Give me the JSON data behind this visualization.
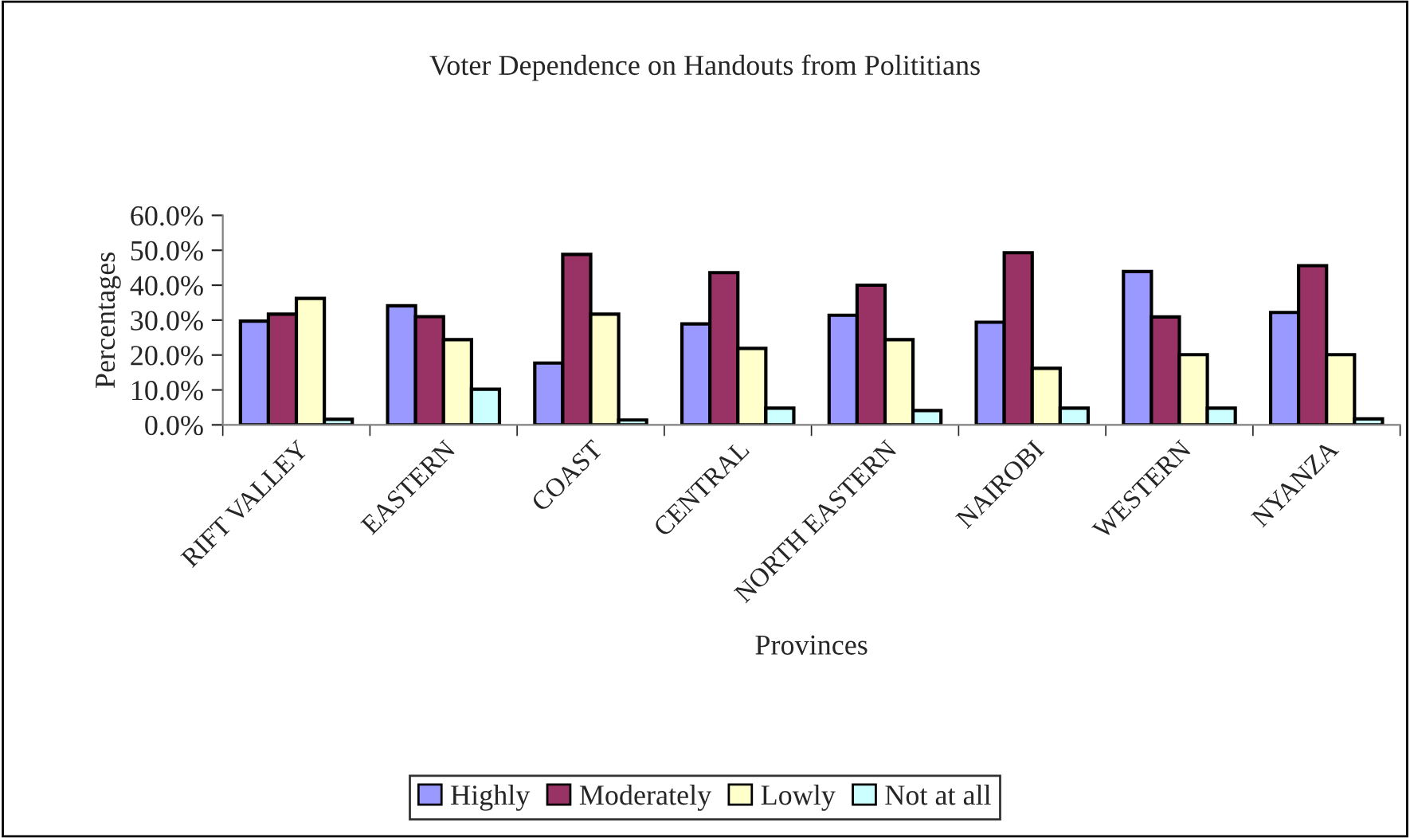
{
  "chart_data": {
    "type": "bar",
    "title": "Voter Dependence on Handouts from Polititians",
    "xlabel": "Provinces",
    "ylabel": "Percentages",
    "categories": [
      "RIFT VALLEY",
      "EASTERN",
      "COAST",
      "CENTRAL",
      "NORTH EASTERN",
      "NAIROBI",
      "WESTERN",
      "NYANZA"
    ],
    "series": [
      {
        "name": "Highly",
        "color": "#9999ff",
        "values": [
          29.7,
          34.1,
          17.7,
          28.9,
          31.4,
          29.4,
          43.9,
          32.2
        ]
      },
      {
        "name": "Moderately",
        "color": "#993366",
        "values": [
          31.7,
          31.0,
          48.8,
          43.6,
          40.0,
          49.3,
          30.9,
          45.6
        ]
      },
      {
        "name": "Lowly",
        "color": "#ffffcc",
        "values": [
          36.2,
          24.4,
          31.7,
          21.9,
          24.4,
          16.2,
          20.1,
          20.1
        ]
      },
      {
        "name": "Not at all",
        "color": "#ccffff",
        "values": [
          1.6,
          10.2,
          1.4,
          4.8,
          4.1,
          4.8,
          4.8,
          1.7
        ]
      }
    ],
    "ylim": [
      0,
      60
    ],
    "yticks": [
      {
        "value": 0,
        "label": "0.0%"
      },
      {
        "value": 10,
        "label": "10.0%"
      },
      {
        "value": 20,
        "label": "20.0%"
      },
      {
        "value": 30,
        "label": "30.0%"
      },
      {
        "value": 40,
        "label": "40.0%"
      },
      {
        "value": 50,
        "label": "50.0%"
      },
      {
        "value": 60,
        "label": "60.0%"
      }
    ],
    "grid": false,
    "legend": "bottom"
  }
}
